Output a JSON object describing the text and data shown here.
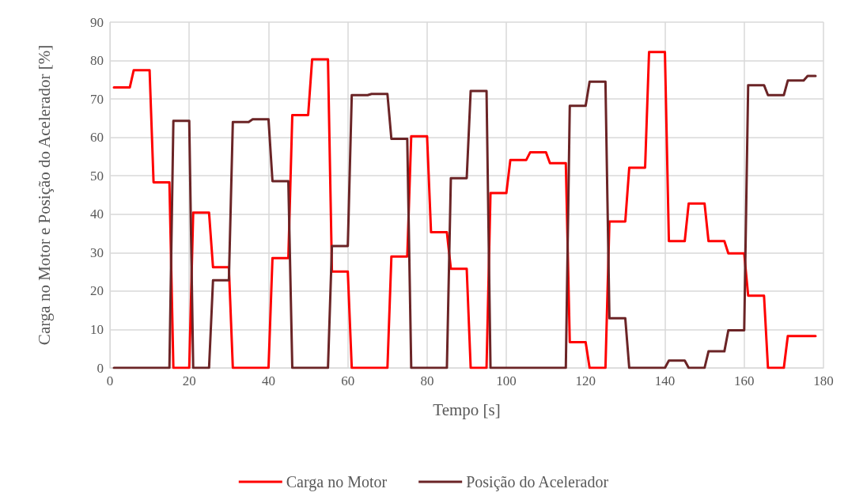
{
  "chart_data": {
    "type": "line",
    "xlabel": "Tempo [s]",
    "ylabel": "Carga no Motor e Posição do Acelerador [%]",
    "x": [
      1,
      5,
      6,
      10,
      11,
      15,
      16,
      20,
      21,
      25,
      26,
      30,
      31,
      35,
      36,
      40,
      41,
      45,
      46,
      50,
      51,
      55,
      56,
      60,
      61,
      65,
      66,
      70,
      71,
      75,
      76,
      80,
      81,
      85,
      86,
      90,
      91,
      95,
      96,
      100,
      101,
      105,
      106,
      110,
      111,
      115,
      116,
      120,
      121,
      125,
      126,
      130,
      131,
      135,
      136,
      140,
      141,
      145,
      146,
      150,
      151,
      155,
      156,
      160,
      161,
      165,
      166,
      170,
      171,
      175,
      176,
      178
    ],
    "series": [
      {
        "name": "Carga no Motor",
        "color": "#ff0000",
        "values": [
          73,
          73,
          77.5,
          77.5,
          48.3,
          48.3,
          0,
          0,
          40.4,
          40.4,
          26.2,
          26.2,
          0,
          0,
          0,
          0,
          28.6,
          28.6,
          65.8,
          65.8,
          80.3,
          80.3,
          25.1,
          25.1,
          0,
          0,
          0,
          0,
          29,
          29,
          60.3,
          60.3,
          35.3,
          35.3,
          25.8,
          25.8,
          0,
          0,
          45.5,
          45.5,
          54.1,
          54.1,
          56.1,
          56.1,
          53.3,
          53.3,
          6.7,
          6.7,
          0,
          0,
          38.1,
          38.1,
          52.1,
          52.1,
          82.2,
          82.2,
          33,
          33,
          42.8,
          42.8,
          33,
          33,
          29.8,
          29.8,
          18.8,
          18.8,
          0,
          0,
          8.3,
          8.3,
          8.3,
          8.3
        ]
      },
      {
        "name": "Posição do Acelerador",
        "color": "#6b2426",
        "values": [
          0,
          0,
          0,
          0,
          0,
          0,
          64.3,
          64.3,
          0,
          0,
          22.8,
          22.8,
          64,
          64,
          64.7,
          64.7,
          48.6,
          48.6,
          0,
          0,
          0,
          0,
          31.7,
          31.7,
          71,
          71,
          71.3,
          71.3,
          59.6,
          59.6,
          0,
          0,
          0,
          0,
          49.4,
          49.4,
          72.1,
          72.1,
          0,
          0,
          0,
          0,
          0,
          0,
          0,
          0,
          68.2,
          68.2,
          74.5,
          74.5,
          12.9,
          12.9,
          0,
          0,
          0,
          0,
          1.9,
          1.9,
          0,
          0,
          4.3,
          4.3,
          9.8,
          9.8,
          73.6,
          73.6,
          71,
          71,
          74.8,
          74.8,
          76,
          76
        ]
      }
    ],
    "xlim": [
      0,
      180
    ],
    "xticks": [
      0,
      20,
      40,
      60,
      80,
      100,
      120,
      140,
      160,
      180
    ],
    "ylim": [
      0,
      90
    ],
    "yticks": [
      0,
      10,
      20,
      30,
      40,
      50,
      60,
      70,
      80,
      90
    ],
    "grid": true,
    "legend": "bottom",
    "marker": "none",
    "line_style": "solid"
  }
}
